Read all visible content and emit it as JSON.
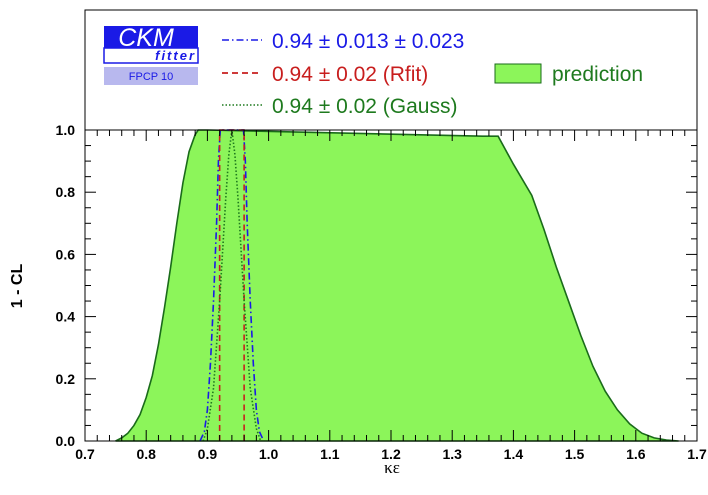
{
  "chart_data": {
    "type": "line",
    "xlabel": "κε",
    "ylabel": "1 - CL",
    "xlim": [
      0.7,
      1.7
    ],
    "ylim": [
      0.0,
      1.0
    ],
    "x_ticks": [
      "0.7",
      "0.8",
      "0.9",
      "1.0",
      "1.1",
      "1.2",
      "1.3",
      "1.4",
      "1.5",
      "1.6",
      "1.7"
    ],
    "y_ticks": [
      "0.0",
      "0.2",
      "0.4",
      "0.6",
      "0.8",
      "1.0"
    ],
    "legend": {
      "placement": "top",
      "logo": {
        "line1": "CKM",
        "line2": "fitter",
        "line3": "FPCP 10"
      },
      "entries": [
        {
          "label": "0.94 ± 0.013 ± 0.023",
          "color": "#1a1ae6",
          "style": "dash-dot"
        },
        {
          "label": "0.94 ± 0.02 (Rfit)",
          "color": "#c81e1e",
          "style": "dashed"
        },
        {
          "label": "0.94 ± 0.02 (Gauss)",
          "color": "#1e7a1e",
          "style": "dotted"
        },
        {
          "label": "prediction",
          "color": "#8cf55a",
          "style": "area"
        }
      ]
    },
    "series": [
      {
        "name": "prediction",
        "kind": "area",
        "fill": "#8cf55a",
        "stroke": "#1a6b1a",
        "x": [
          0.75,
          0.76,
          0.77,
          0.78,
          0.79,
          0.8,
          0.81,
          0.82,
          0.83,
          0.84,
          0.85,
          0.86,
          0.87,
          0.88,
          0.885,
          0.89,
          0.9,
          1.35,
          1.375,
          1.4,
          1.43,
          1.45,
          1.47,
          1.49,
          1.51,
          1.53,
          1.55,
          1.57,
          1.59,
          1.61,
          1.63,
          1.65,
          1.67
        ],
        "y": [
          0.0,
          0.01,
          0.025,
          0.05,
          0.085,
          0.14,
          0.21,
          0.31,
          0.43,
          0.56,
          0.7,
          0.83,
          0.93,
          0.985,
          1.0,
          1.0,
          1.0,
          0.98,
          0.98,
          0.89,
          0.79,
          0.68,
          0.56,
          0.45,
          0.34,
          0.24,
          0.16,
          0.1,
          0.055,
          0.025,
          0.01,
          0.003,
          0.0
        ]
      },
      {
        "name": "0.94 ± 0.013 ± 0.023",
        "kind": "line",
        "color": "#1a1ae6",
        "x": [
          0.888,
          0.895,
          0.9,
          0.905,
          0.91,
          0.915,
          0.918,
          0.921,
          0.959,
          0.962,
          0.965,
          0.97,
          0.975,
          0.98,
          0.985,
          0.992
        ],
        "y": [
          0.0,
          0.03,
          0.1,
          0.25,
          0.45,
          0.7,
          0.9,
          1.0,
          1.0,
          0.9,
          0.7,
          0.45,
          0.25,
          0.1,
          0.03,
          0.0
        ]
      },
      {
        "name": "0.94 ± 0.02 (Rfit)",
        "kind": "line",
        "color": "#c81e1e",
        "x": [
          0.92,
          0.92,
          0.96,
          0.96
        ],
        "y": [
          0.0,
          1.0,
          1.0,
          0.0
        ]
      },
      {
        "name": "0.94 ± 0.02 (Gauss)",
        "kind": "line",
        "color": "#1e7a1e",
        "x": [
          0.893,
          0.9,
          0.91,
          0.92,
          0.93,
          0.935,
          0.94,
          0.945,
          0.95,
          0.96,
          0.97,
          0.98,
          0.987
        ],
        "y": [
          0.0,
          0.04,
          0.17,
          0.45,
          0.78,
          0.92,
          1.0,
          0.92,
          0.78,
          0.45,
          0.17,
          0.04,
          0.0
        ]
      }
    ]
  }
}
